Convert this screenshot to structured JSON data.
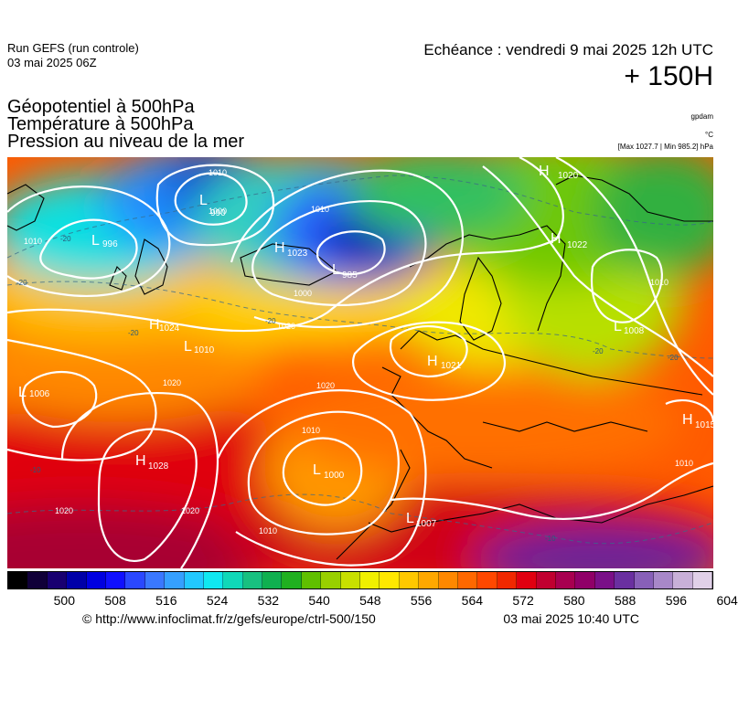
{
  "header": {
    "run_title": "Run GEFS (run controle)",
    "run_date": "03 mai 2025 06Z",
    "valid_time": "Echéance : vendredi 9 mai 2025 12h UTC",
    "lead_time": "+ 150H",
    "layers": [
      "Géopotentiel à 500hPa",
      "Température à 500hPa",
      "Pression au niveau de la mer"
    ],
    "unit_geopotential": "gpdam",
    "unit_temperature": "°C",
    "max_min": "[Max 1027.7 | Min 985.2] hPa"
  },
  "pressure_centers": [
    {
      "type": "L",
      "value": "996"
    },
    {
      "type": "L",
      "value": "990"
    },
    {
      "type": "H",
      "value": "1023"
    },
    {
      "type": "L",
      "value": "985"
    },
    {
      "type": "H",
      "value": "1020"
    },
    {
      "type": "H",
      "value": "1022"
    },
    {
      "type": "H",
      "value": "1024"
    },
    {
      "type": "L",
      "value": "1010"
    },
    {
      "type": "L",
      "value": "1008"
    },
    {
      "type": "H",
      "value": "1021"
    },
    {
      "type": "L",
      "value": "1006"
    },
    {
      "type": "H",
      "value": "1028"
    },
    {
      "type": "L",
      "value": "1000"
    },
    {
      "type": "L",
      "value": "1007"
    },
    {
      "type": "H",
      "value": "1015"
    }
  ],
  "isobar_labels": [
    "1010",
    "1010",
    "1010",
    "1000",
    "1020",
    "1020",
    "1020",
    "1020",
    "1010",
    "1010",
    "1010",
    "1020",
    "1010",
    "1000"
  ],
  "temperature_labels": [
    "-20",
    "-20",
    "-20",
    "-20",
    "-20",
    "-20",
    "-10",
    "-10"
  ],
  "colorbar": {
    "colors": [
      "#000000",
      "#100038",
      "#180070",
      "#0000a8",
      "#0000e0",
      "#1010ff",
      "#2a48ff",
      "#3a78ff",
      "#35a0ff",
      "#22c8ff",
      "#10e8f0",
      "#10d8b8",
      "#18c080",
      "#10b050",
      "#20b020",
      "#60c000",
      "#98d000",
      "#c8e000",
      "#f0f000",
      "#ffe800",
      "#ffc800",
      "#ffa800",
      "#ff8800",
      "#ff6800",
      "#ff4800",
      "#f02800",
      "#e00010",
      "#c00030",
      "#a80050",
      "#900068",
      "#7a1088",
      "#6a30a0",
      "#8860b8",
      "#a888c8",
      "#c8b0d8",
      "#e0d0e8"
    ],
    "tick_labels": [
      "500",
      "508",
      "516",
      "524",
      "532",
      "540",
      "548",
      "556",
      "564",
      "572",
      "580",
      "588",
      "596",
      "604"
    ]
  },
  "footer": {
    "credit": "© http://www.infoclimat.fr/z/gefs/europe/ctrl-500/150",
    "created": "03 mai 2025 10:40 UTC"
  }
}
